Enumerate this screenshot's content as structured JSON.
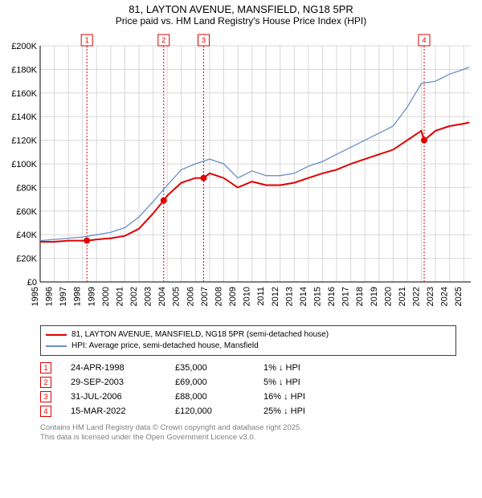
{
  "title_line1": "81, LAYTON AVENUE, MANSFIELD, NG18 5PR",
  "title_line2": "Price paid vs. HM Land Registry's House Price Index (HPI)",
  "chart": {
    "type": "line",
    "background_color": "#ffffff",
    "plot_background": "#ffffff",
    "grid_color": "#d8d8d8",
    "axis_color": "#000000",
    "xlim": [
      1995,
      2025.5
    ],
    "ylim": [
      0,
      200000
    ],
    "ytick_step": 20000,
    "ytick_labels": [
      "£0",
      "£20K",
      "£40K",
      "£60K",
      "£80K",
      "£100K",
      "£120K",
      "£140K",
      "£160K",
      "£180K",
      "£200K"
    ],
    "xtick_step": 1,
    "xtick_labels": [
      "1995",
      "1996",
      "1997",
      "1998",
      "1999",
      "2000",
      "2001",
      "2002",
      "2003",
      "2004",
      "2005",
      "2006",
      "2007",
      "2008",
      "2009",
      "2010",
      "2011",
      "2012",
      "2013",
      "2014",
      "2015",
      "2016",
      "2017",
      "2018",
      "2019",
      "2020",
      "2021",
      "2022",
      "2023",
      "2024",
      "2025"
    ],
    "series": [
      {
        "name": "price_paid",
        "label": "81, LAYTON AVENUE, MANSFIELD, NG18 5PR (semi-detached house)",
        "color": "#e00000",
        "line_width": 2,
        "x": [
          1995,
          1996,
          1997,
          1998,
          1998.31,
          1999,
          2000,
          2001,
          2002,
          2003,
          2003.75,
          2004,
          2005,
          2006,
          2006.58,
          2007,
          2008,
          2009,
          2010,
          2011,
          2012,
          2013,
          2014,
          2015,
          2016,
          2017,
          2018,
          2019,
          2020,
          2021,
          2022,
          2022.2,
          2023,
          2024,
          2025,
          2025.4
        ],
        "y": [
          34000,
          34000,
          35000,
          35000,
          35000,
          36000,
          37000,
          39000,
          45000,
          58000,
          69000,
          73000,
          84000,
          88000,
          88000,
          92000,
          88000,
          80000,
          85000,
          82000,
          82000,
          84000,
          88000,
          92000,
          95000,
          100000,
          104000,
          108000,
          112000,
          120000,
          128000,
          120000,
          128000,
          132000,
          134000,
          135000
        ]
      },
      {
        "name": "hpi",
        "label": "HPI: Average price, semi-detached house, Mansfield",
        "color": "#6a8fc9",
        "line_width": 1.3,
        "x": [
          1995,
          1996,
          1997,
          1998,
          1999,
          2000,
          2001,
          2002,
          2003,
          2004,
          2005,
          2006,
          2007,
          2008,
          2009,
          2010,
          2011,
          2012,
          2013,
          2014,
          2015,
          2016,
          2017,
          2018,
          2019,
          2020,
          2021,
          2022,
          2023,
          2024,
          2025,
          2025.4
        ],
        "y": [
          35000,
          36000,
          37000,
          38000,
          40000,
          42000,
          46000,
          55000,
          68000,
          82000,
          95000,
          100000,
          104000,
          100000,
          88000,
          94000,
          90000,
          90000,
          92000,
          98000,
          102000,
          108000,
          114000,
          120000,
          126000,
          132000,
          148000,
          168000,
          170000,
          176000,
          180000,
          182000
        ]
      }
    ],
    "sale_markers": [
      {
        "x": 1998.31,
        "y": 35000
      },
      {
        "x": 2003.75,
        "y": 69000
      },
      {
        "x": 2006.58,
        "y": 88000
      },
      {
        "x": 2022.2,
        "y": 120000
      }
    ],
    "event_markers": [
      {
        "n": "1",
        "x": 1998.31,
        "color": "#e00000"
      },
      {
        "n": "2",
        "x": 2003.75,
        "color": "#e00000"
      },
      {
        "n": "3",
        "x": 2006.58,
        "color": "#e00000"
      },
      {
        "n": "4",
        "x": 2022.2,
        "color": "#e00000"
      }
    ]
  },
  "legend": [
    {
      "color": "#e00000",
      "width": 2,
      "label": "81, LAYTON AVENUE, MANSFIELD, NG18 5PR (semi-detached house)"
    },
    {
      "color": "#6a8fc9",
      "width": 1.3,
      "label": "HPI: Average price, semi-detached house, Mansfield"
    }
  ],
  "events_table": [
    {
      "n": "1",
      "date": "24-APR-1998",
      "price": "£35,000",
      "change": "1% ↓ HPI"
    },
    {
      "n": "2",
      "date": "29-SEP-2003",
      "price": "£69,000",
      "change": "5% ↓ HPI"
    },
    {
      "n": "3",
      "date": "31-JUL-2006",
      "price": "£88,000",
      "change": "16% ↓ HPI"
    },
    {
      "n": "4",
      "date": "15-MAR-2022",
      "price": "£120,000",
      "change": "25% ↓ HPI"
    }
  ],
  "footnote_line1": "Contains HM Land Registry data © Crown copyright and database right 2025.",
  "footnote_line2": "This data is licensed under the Open Government Licence v3.0.",
  "colors": {
    "marker_border": "#e00000",
    "marker_text": "#e00000",
    "footnote": "#808080"
  }
}
